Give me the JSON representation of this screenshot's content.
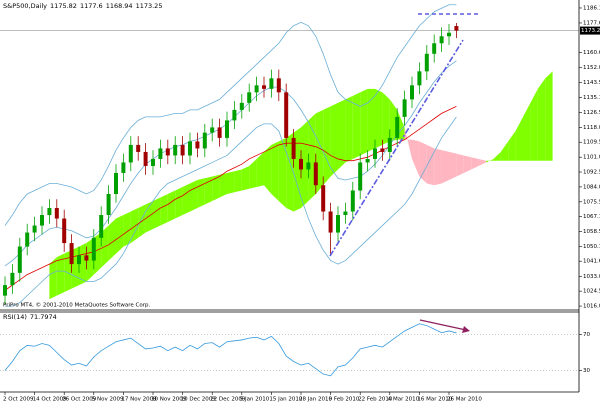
{
  "chart_data": {
    "type": "candlestick",
    "title": "S&P500,Daily",
    "footer": "PriPro MT4, © 2001-2010 MetaQuotes Software Corp.",
    "categories": [
      "2 Oct 2009",
      null,
      null,
      null,
      "14 Oct 2009",
      null,
      null,
      null,
      "26 Oct 2009",
      null,
      null,
      null,
      "5 Nov 2009",
      null,
      null,
      null,
      "17 Nov 2009",
      null,
      null,
      null,
      "30 Nov 2009",
      null,
      null,
      null,
      "10 Dec 2009",
      null,
      null,
      null,
      "22 Dec 2009",
      null,
      null,
      null,
      "5 Jan 2010",
      null,
      null,
      null,
      "15 Jan 2010",
      null,
      null,
      null,
      "28 Jan 2010",
      null,
      null,
      null,
      "9 Feb 2010",
      null,
      null,
      null,
      "22 Feb 2010",
      null,
      null,
      null,
      "4 Mar 2010",
      null,
      null,
      null,
      "16 Mar 2010",
      null,
      null,
      null,
      "26 Mar 2010",
      null
    ],
    "open": [
      1022,
      1028,
      1035,
      1050,
      1058,
      1062,
      1068,
      1072,
      1066,
      1052,
      1040,
      1045,
      1042,
      1055,
      1068,
      1080,
      1092,
      1098,
      1108,
      1104,
      1096,
      1100,
      1106,
      1102,
      1108,
      1102,
      1110,
      1106,
      1115,
      1118,
      1112,
      1122,
      1128,
      1132,
      1138,
      1142,
      1140,
      1146,
      1138,
      1112,
      1100,
      1094,
      1098,
      1085,
      1070,
      1058,
      1068,
      1070,
      1082,
      1098,
      1100,
      1106,
      1104,
      1112,
      1124,
      1134,
      1142,
      1150,
      1160,
      1166,
      1170,
      1175.82
    ],
    "high": [
      1033,
      1040,
      1055,
      1063,
      1067,
      1073,
      1077,
      1077,
      1071,
      1057,
      1050,
      1050,
      1060,
      1073,
      1085,
      1097,
      1103,
      1113,
      1113,
      1109,
      1105,
      1111,
      1111,
      1113,
      1113,
      1115,
      1115,
      1120,
      1123,
      1123,
      1127,
      1133,
      1137,
      1143,
      1147,
      1147,
      1151,
      1151,
      1143,
      1117,
      1105,
      1103,
      1103,
      1090,
      1075,
      1073,
      1075,
      1087,
      1103,
      1105,
      1111,
      1111,
      1117,
      1129,
      1139,
      1147,
      1155,
      1165,
      1171,
      1175,
      1177,
      1177.6
    ],
    "low": [
      1017,
      1023,
      1030,
      1045,
      1053,
      1057,
      1063,
      1061,
      1047,
      1035,
      1035,
      1037,
      1037,
      1050,
      1063,
      1075,
      1087,
      1093,
      1099,
      1091,
      1091,
      1095,
      1097,
      1097,
      1097,
      1097,
      1101,
      1101,
      1110,
      1107,
      1107,
      1117,
      1123,
      1127,
      1133,
      1135,
      1135,
      1133,
      1107,
      1095,
      1089,
      1089,
      1080,
      1065,
      1045,
      1053,
      1063,
      1065,
      1077,
      1093,
      1095,
      1099,
      1099,
      1107,
      1119,
      1129,
      1137,
      1145,
      1155,
      1161,
      1165,
      1168.94
    ],
    "close": [
      1028,
      1035,
      1050,
      1058,
      1062,
      1068,
      1072,
      1066,
      1052,
      1040,
      1045,
      1042,
      1055,
      1068,
      1080,
      1092,
      1098,
      1108,
      1104,
      1096,
      1100,
      1106,
      1102,
      1108,
      1102,
      1110,
      1106,
      1115,
      1118,
      1112,
      1122,
      1128,
      1132,
      1138,
      1142,
      1140,
      1146,
      1138,
      1112,
      1100,
      1094,
      1098,
      1085,
      1070,
      1058,
      1068,
      1070,
      1082,
      1098,
      1100,
      1106,
      1104,
      1112,
      1124,
      1134,
      1142,
      1150,
      1160,
      1166,
      1170,
      1172,
      1173.25
    ],
    "up_color": "#00a000",
    "down_color": "#a00000",
    "ylim": [
      1013.8,
      1190.7
    ],
    "yticks": [
      1186.15,
      {
        "value": 1177.6,
        "label": "1177.60"
      },
      1160.65,
      1152.05,
      1143.55,
      {
        "value": 1135.1,
        "label": "1135.10"
      },
      1126.55,
      {
        "value": 1118,
        "label": "1118.00"
      },
      1109.55,
      {
        "value": 1101,
        "label": "1101.00"
      },
      1092.55,
      1084.05,
      1075.55,
      {
        "value": 1067.1,
        "label": "1067.10"
      },
      1058.55,
      {
        "value": 1050.1,
        "label": "1050.10"
      },
      1041.65,
      1033.05,
      1024.55,
      1016.05
    ],
    "cloud": {
      "bull_color": "#80ff00",
      "bear_color": "#ffb6c1",
      "span_a": [
        null,
        null,
        null,
        null,
        null,
        null,
        1040,
        1044,
        1046,
        1048,
        1050,
        1052,
        1055,
        1058,
        1062,
        1066,
        1068,
        1070,
        1072,
        1074,
        1076,
        1078,
        1080,
        1082,
        1084,
        1086,
        1088,
        1089,
        1090,
        1091,
        1092,
        1093,
        1094,
        1096,
        1100,
        1104,
        1108,
        1110,
        1112,
        1115,
        1118,
        1122,
        1126,
        1128,
        1130,
        1132,
        1134,
        1136,
        1138,
        1140,
        1140,
        1138,
        1134,
        1128,
        1118,
        1100,
        1090,
        1086,
        1085,
        1086,
        1088,
        1090,
        1092,
        1094,
        1096,
        1098,
        1100,
        1104,
        1110,
        1116,
        1124,
        1132,
        1140,
        1146,
        1150
      ],
      "span_b": [
        null,
        null,
        null,
        null,
        null,
        null,
        1020,
        1022,
        1024,
        1026,
        1028,
        1030,
        1034,
        1038,
        1042,
        1046,
        1050,
        1052,
        1055,
        1058,
        1060,
        1062,
        1064,
        1066,
        1068,
        1070,
        1072,
        1074,
        1076,
        1078,
        1080,
        1081,
        1082,
        1083,
        1084,
        1085,
        1080,
        1076,
        1072,
        1070,
        1072,
        1076,
        1080,
        1085,
        1090,
        1094,
        1098,
        1100,
        1102,
        1104,
        1106,
        1108,
        1110,
        1111,
        1111,
        1111,
        1110,
        1108,
        1106,
        1105,
        1104,
        1103,
        1102,
        1101,
        1100,
        1099,
        1099,
        1099,
        1099,
        1099,
        1099,
        1099,
        1099,
        1099,
        1099
      ]
    },
    "lines": [
      {
        "color": "#6aaed6",
        "values": [
          1062,
          1068,
          1075,
          1080,
          1082,
          1084,
          1086,
          1086,
          1085,
          1084,
          1082,
          1080,
          1082,
          1088,
          1096,
          1105,
          1112,
          1118,
          1122,
          1124,
          1124,
          1124,
          1125,
          1126,
          1126,
          1128,
          1128,
          1130,
          1132,
          1134,
          1138,
          1142,
          1146,
          1150,
          1154,
          1158,
          1162,
          1166,
          1172,
          1176,
          1178,
          1176,
          1170,
          1160,
          1148,
          1138,
          1134,
          1132,
          1130,
          1132,
          1136,
          1142,
          1150,
          1158,
          1164,
          1170,
          1176,
          1180,
          1184,
          1186,
          1188,
          1188
        ]
      },
      {
        "color": "#6aaed6",
        "values": [
          1039,
          1042,
          1046,
          1051,
          1054,
          1057,
          1060,
          1061,
          1060,
          1059,
          1057,
          1055,
          1056,
          1060,
          1066,
          1072,
          1079,
          1086,
          1092,
          1097,
          1100,
          1103,
          1105,
          1107,
          1108,
          1110,
          1111,
          1113,
          1115,
          1117,
          1120,
          1124,
          1128,
          1132,
          1136,
          1139,
          1141,
          1141,
          1138,
          1134,
          1128,
          1121,
          1113,
          1104,
          1095,
          1089,
          1088,
          1089,
          1090,
          1093,
          1097,
          1102,
          1108,
          1114,
          1119,
          1125,
          1132,
          1138,
          1144,
          1149,
          1153,
          1156
        ]
      },
      {
        "color": "#6aaed6",
        "values": [
          1016,
          1016,
          1018,
          1022,
          1026,
          1030,
          1034,
          1036,
          1036,
          1034,
          1032,
          1030,
          1030,
          1032,
          1036,
          1040,
          1046,
          1054,
          1062,
          1070,
          1076,
          1082,
          1086,
          1088,
          1090,
          1092,
          1094,
          1096,
          1098,
          1100,
          1102,
          1106,
          1110,
          1114,
          1118,
          1120,
          1120,
          1116,
          1104,
          1092,
          1078,
          1066,
          1056,
          1048,
          1042,
          1040,
          1042,
          1046,
          1050,
          1054,
          1058,
          1062,
          1066,
          1070,
          1074,
          1080,
          1088,
          1096,
          1104,
          1112,
          1118,
          1124
        ]
      },
      {
        "color": "#e00000",
        "values": [
          1025,
          1028,
          1031,
          1034,
          1036,
          1038,
          1040,
          1042,
          1043,
          1044,
          1045,
          1046,
          1047,
          1049,
          1051,
          1054,
          1057,
          1060,
          1063,
          1066,
          1069,
          1072,
          1074,
          1077,
          1079,
          1082,
          1084,
          1086,
          1088,
          1090,
          1093,
          1095,
          1097,
          1100,
          1102,
          1104,
          1106,
          1108,
          1109,
          1109,
          1109,
          1108,
          1107,
          1105,
          1102,
          1100,
          1099,
          1099,
          1100,
          1101,
          1103,
          1105,
          1107,
          1109,
          1111,
          1114,
          1117,
          1120,
          1123,
          1126,
          1128,
          1130
        ]
      }
    ],
    "rsi": {
      "name": "RSI(14)",
      "color": "#3399dd",
      "values": [
        30,
        40,
        52,
        58,
        57,
        60,
        58,
        50,
        42,
        36,
        38,
        35,
        45,
        52,
        57,
        62,
        64,
        66,
        60,
        54,
        55,
        57,
        52,
        56,
        52,
        58,
        54,
        60,
        61,
        56,
        62,
        63,
        64,
        66,
        67,
        64,
        68,
        60,
        46,
        40,
        36,
        38,
        32,
        26,
        24,
        34,
        36,
        44,
        54,
        56,
        58,
        56,
        62,
        68,
        74,
        78,
        82,
        80,
        76,
        72,
        74,
        71.7974
      ],
      "ylim": [
        6,
        94
      ],
      "yticks": [
        70,
        30
      ]
    }
  }
}
